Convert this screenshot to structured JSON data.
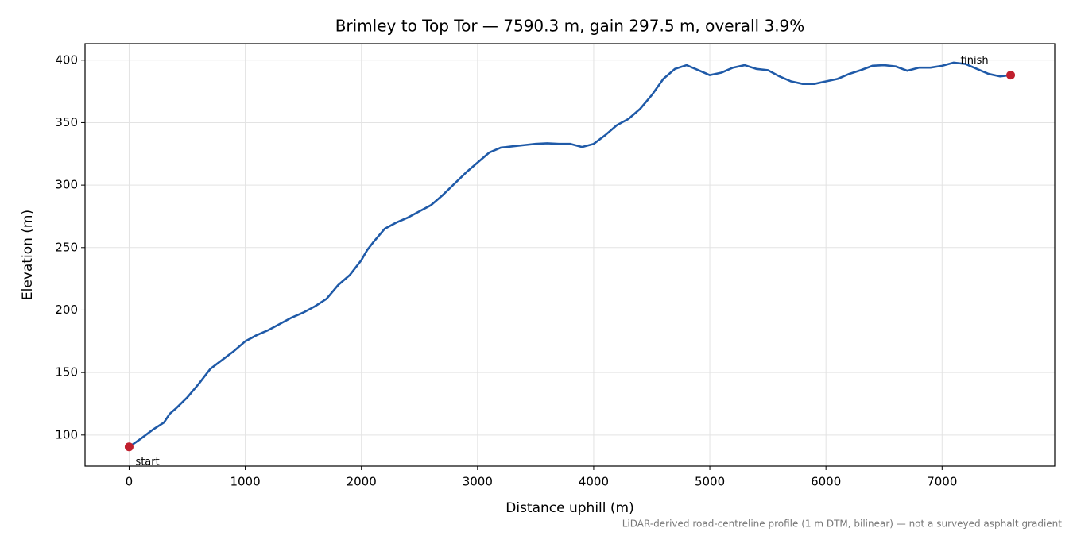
{
  "chart_data": {
    "type": "line",
    "title": "Brimley to Top Tor — 7590.3 m, gain 297.5 m, overall 3.9%",
    "x_label": "Distance uphill (m)",
    "y_label": "Elevation (m)",
    "footnote": "LiDAR-derived road-centreline profile (1 m DTM, bilinear) — not a surveyed asphalt gradient",
    "x": [
      0,
      100,
      200,
      300,
      350,
      400,
      500,
      600,
      700,
      800,
      900,
      1000,
      1100,
      1200,
      1300,
      1400,
      1500,
      1600,
      1700,
      1800,
      1900,
      2000,
      2050,
      2100,
      2200,
      2300,
      2400,
      2500,
      2600,
      2700,
      2800,
      2900,
      3000,
      3100,
      3200,
      3300,
      3400,
      3500,
      3600,
      3700,
      3800,
      3900,
      4000,
      4100,
      4200,
      4300,
      4400,
      4500,
      4600,
      4700,
      4800,
      4900,
      5000,
      5100,
      5200,
      5300,
      5400,
      5500,
      5600,
      5700,
      5800,
      5900,
      6000,
      6100,
      6200,
      6300,
      6400,
      6500,
      6600,
      6700,
      6800,
      6900,
      7000,
      7100,
      7200,
      7300,
      7400,
      7500,
      7590.3
    ],
    "series": [
      {
        "name": "Elevation",
        "color": "#1f5aa8",
        "values": [
          90.5,
          97,
          104,
          110,
          117,
          121,
          130,
          141,
          153,
          160,
          167,
          175,
          180,
          184,
          189,
          194,
          198,
          203,
          209,
          220,
          228,
          240,
          248,
          254,
          265,
          270,
          274,
          279,
          284,
          292,
          301,
          310,
          318,
          326,
          330,
          331,
          332,
          333,
          333.5,
          333,
          333,
          330.5,
          333,
          340,
          348,
          353,
          361,
          372,
          385,
          393,
          396,
          392,
          388,
          390,
          394,
          396,
          393,
          392,
          387,
          383,
          381,
          381,
          383,
          385,
          389,
          392,
          395.5,
          396,
          395,
          391.5,
          394,
          394,
          395.5,
          398,
          397,
          393,
          389,
          387,
          388
        ]
      }
    ],
    "endpoint_color": "#c0202e",
    "annotations": [
      "start",
      "finish"
    ],
    "xlim": [
      -379.5,
      7969.8
    ],
    "ylim": [
      75.1,
      413.2
    ],
    "xticks": [
      0,
      1000,
      2000,
      3000,
      4000,
      5000,
      6000,
      7000
    ],
    "yticks": [
      100,
      150,
      200,
      250,
      300,
      350,
      400
    ],
    "grid": true
  }
}
